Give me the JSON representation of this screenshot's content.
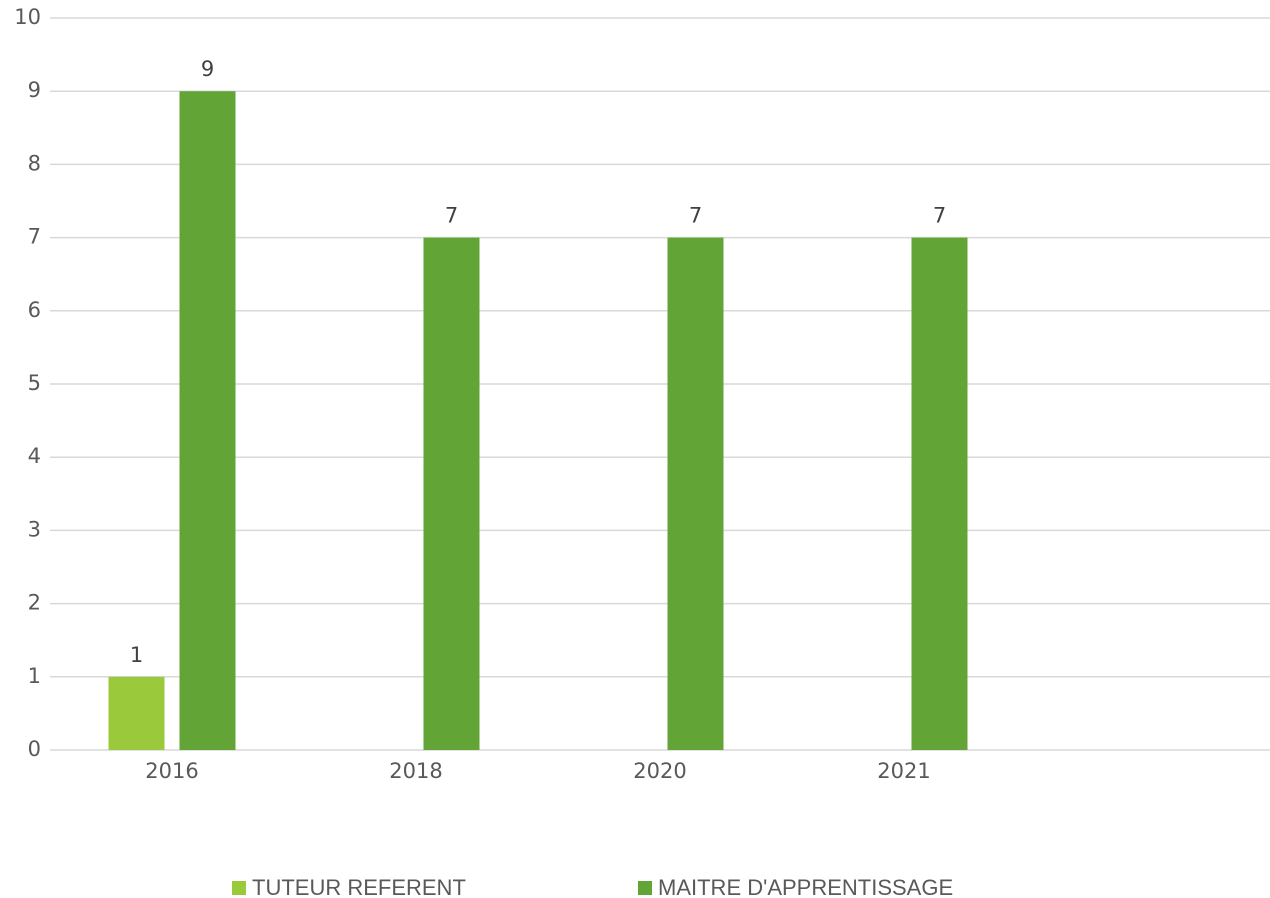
{
  "chart_data": {
    "type": "bar",
    "categories": [
      "2016",
      "2018",
      "2020",
      "2021",
      null
    ],
    "series": [
      {
        "name": "TUTEUR REFERENT",
        "color": "#9aca3c",
        "values": [
          1,
          null,
          null,
          null,
          null
        ]
      },
      {
        "name": "MAITRE D'APPRENTISSAGE",
        "color": "#62a536",
        "values": [
          9,
          7,
          7,
          7,
          null
        ]
      }
    ],
    "ylim": [
      0,
      10
    ],
    "yticks": [
      0,
      1,
      2,
      3,
      4,
      5,
      6,
      7,
      8,
      9,
      10
    ],
    "grid": true,
    "legend": "bottom",
    "data_labels": true
  }
}
